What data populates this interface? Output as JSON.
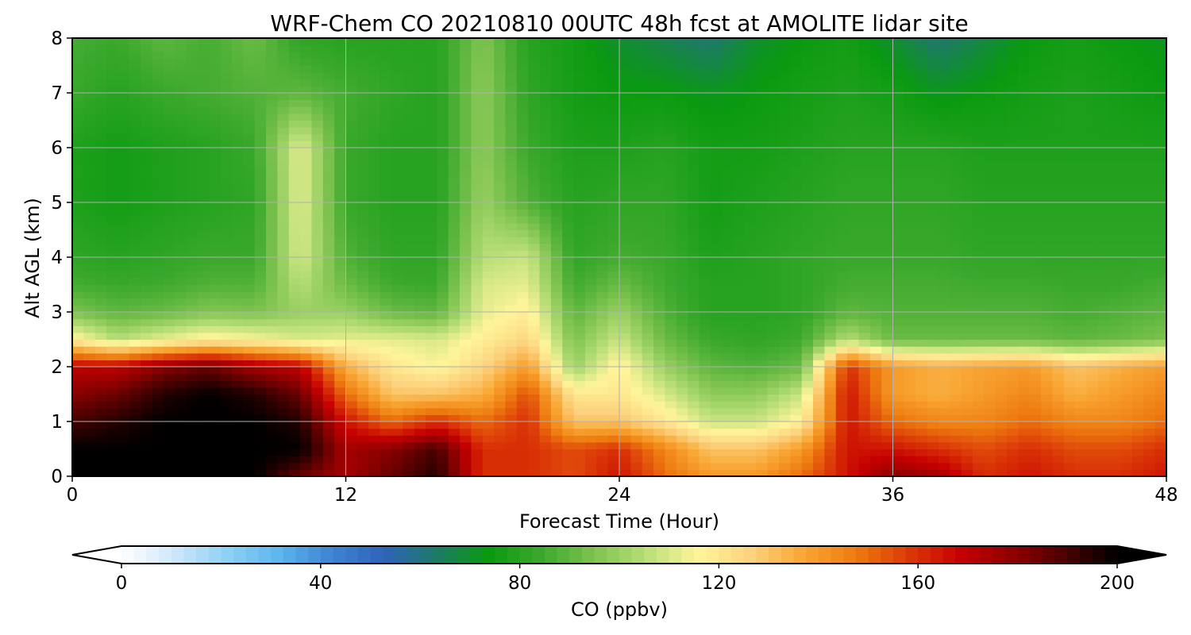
{
  "chart_data": {
    "type": "heatmap",
    "title": "WRF-Chem CO  20210810 00UTC 48h fcst at AMOLITE lidar site",
    "xlabel": "Forecast Time (Hour)",
    "ylabel": "Alt AGL (km)",
    "xlim": [
      0,
      48
    ],
    "ylim": [
      0,
      8
    ],
    "x_ticks": [
      0,
      12,
      24,
      36,
      48
    ],
    "y_ticks": [
      0,
      1,
      2,
      3,
      4,
      5,
      6,
      7,
      8
    ],
    "grid": true,
    "x": [
      0,
      2,
      4,
      6,
      8,
      10,
      12,
      14,
      16,
      18,
      20,
      22,
      24,
      26,
      28,
      30,
      32,
      34,
      36,
      38,
      40,
      42,
      44,
      46,
      48
    ],
    "y": [
      0,
      0.5,
      1,
      1.5,
      2,
      2.5,
      3,
      3.5,
      4,
      5,
      6,
      7,
      8
    ],
    "values": [
      [
        200,
        200,
        200,
        200,
        200,
        185,
        175,
        185,
        195,
        160,
        160,
        155,
        165,
        150,
        140,
        140,
        150,
        165,
        180,
        175,
        160,
        165,
        160,
        160,
        165
      ],
      [
        200,
        200,
        200,
        200,
        200,
        200,
        175,
        180,
        190,
        160,
        160,
        155,
        160,
        145,
        130,
        130,
        140,
        165,
        165,
        160,
        155,
        160,
        155,
        155,
        160
      ],
      [
        190,
        195,
        200,
        200,
        200,
        195,
        165,
        150,
        160,
        150,
        160,
        130,
        130,
        120,
        108,
        108,
        118,
        165,
        150,
        145,
        145,
        150,
        145,
        145,
        150
      ],
      [
        180,
        185,
        195,
        200,
        195,
        185,
        150,
        130,
        130,
        135,
        155,
        120,
        120,
        110,
        98,
        98,
        108,
        165,
        140,
        135,
        140,
        145,
        135,
        140,
        145
      ],
      [
        170,
        170,
        180,
        185,
        175,
        170,
        135,
        120,
        115,
        125,
        140,
        100,
        118,
        100,
        90,
        88,
        92,
        160,
        140,
        135,
        138,
        140,
        130,
        135,
        140
      ],
      [
        118,
        105,
        112,
        118,
        115,
        110,
        112,
        112,
        110,
        118,
        125,
        95,
        108,
        92,
        84,
        82,
        85,
        105,
        92,
        92,
        92,
        92,
        90,
        92,
        95
      ],
      [
        95,
        90,
        92,
        96,
        95,
        100,
        100,
        92,
        90,
        112,
        118,
        90,
        100,
        88,
        80,
        80,
        82,
        90,
        88,
        88,
        88,
        88,
        86,
        88,
        90
      ],
      [
        86,
        84,
        85,
        88,
        88,
        105,
        92,
        85,
        84,
        110,
        112,
        85,
        92,
        85,
        80,
        80,
        82,
        86,
        86,
        86,
        85,
        85,
        84,
        84,
        86
      ],
      [
        82,
        80,
        82,
        84,
        84,
        110,
        88,
        82,
        82,
        105,
        108,
        82,
        86,
        84,
        78,
        80,
        82,
        84,
        84,
        84,
        82,
        82,
        82,
        82,
        82
      ],
      [
        78,
        76,
        78,
        80,
        82,
        112,
        84,
        80,
        80,
        100,
        88,
        80,
        82,
        82,
        76,
        78,
        80,
        82,
        82,
        82,
        80,
        80,
        80,
        80,
        80
      ],
      [
        78,
        76,
        78,
        80,
        84,
        112,
        84,
        80,
        80,
        98,
        84,
        78,
        78,
        80,
        76,
        76,
        78,
        80,
        80,
        80,
        78,
        78,
        78,
        78,
        78
      ],
      [
        84,
        80,
        84,
        86,
        88,
        90,
        86,
        82,
        80,
        98,
        82,
        76,
        74,
        74,
        72,
        74,
        76,
        78,
        76,
        72,
        74,
        76,
        78,
        76,
        74
      ],
      [
        86,
        84,
        90,
        86,
        92,
        82,
        80,
        80,
        80,
        96,
        80,
        76,
        70,
        66,
        62,
        70,
        74,
        76,
        70,
        62,
        68,
        74,
        76,
        74,
        72
      ]
    ]
  },
  "colorbar": {
    "label": "CO  (ppbv)",
    "vmin": 0,
    "vmax": 200,
    "ticks": [
      0,
      40,
      80,
      120,
      160,
      200
    ],
    "colors": [
      "#ffffff",
      "#cfe8fa",
      "#8fd0f6",
      "#5cb6ee",
      "#3f84d2",
      "#2f63bc",
      "#1d7a66",
      "#0a9a10",
      "#3aa82c",
      "#7cc24e",
      "#b8de78",
      "#fff59a",
      "#fcd27e",
      "#f9a735",
      "#ee7d10",
      "#dc3a08",
      "#c60000",
      "#8f0000",
      "#4a0000",
      "#000000"
    ]
  }
}
